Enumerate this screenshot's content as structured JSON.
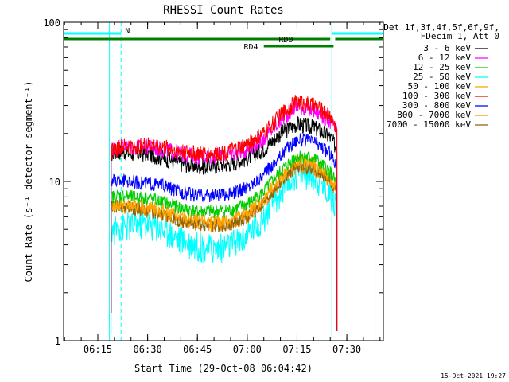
{
  "chart_data": {
    "type": "line",
    "title": "RHESSI Count Rates",
    "xlabel": "Start Time (29-Oct-08 06:04:42)",
    "ylabel": "Count Rate (s⁻¹ detector segment⁻¹)",
    "y_scale": "log",
    "ylim": [
      1,
      100
    ],
    "xlim": [
      "06:04:42",
      "07:41:00"
    ],
    "x_ticks": [
      "06:15",
      "06:30",
      "06:45",
      "07:00",
      "07:15",
      "07:30"
    ],
    "y_ticks": [
      "1",
      "10",
      "100"
    ],
    "grid": false,
    "legend_position": "right",
    "legend_header": [
      "Det 1f,3f,4f,5f,6f,9f,",
      "FDecim 1, Att 0"
    ],
    "series": [
      {
        "name": "3 - 6 keV",
        "color": "#000000",
        "x": [
          "06:19",
          "06:22",
          "06:25",
          "06:30",
          "06:35",
          "06:40",
          "06:45",
          "06:50",
          "06:55",
          "07:00",
          "07:05",
          "07:10",
          "07:15",
          "07:20",
          "07:25",
          "07:27"
        ],
        "values": [
          15,
          15.5,
          15,
          15,
          14,
          13,
          12.5,
          12.5,
          13,
          14,
          16,
          20,
          23,
          22,
          19,
          16
        ]
      },
      {
        "name": "6 - 12 keV",
        "color": "#ff00ff",
        "x": [
          "06:19",
          "06:22",
          "06:25",
          "06:30",
          "06:35",
          "06:40",
          "06:45",
          "06:50",
          "06:55",
          "07:00",
          "07:05",
          "07:10",
          "07:15",
          "07:20",
          "07:25",
          "07:27"
        ],
        "values": [
          16,
          17,
          16.5,
          16.5,
          16,
          15,
          14.5,
          14.5,
          15,
          16,
          18.5,
          24,
          30,
          28,
          24,
          20
        ]
      },
      {
        "name": "12 - 25 keV",
        "color": "#00cc00",
        "x": [
          "06:19",
          "06:22",
          "06:25",
          "06:30",
          "06:35",
          "06:40",
          "06:45",
          "06:50",
          "06:55",
          "07:00",
          "07:05",
          "07:10",
          "07:15",
          "07:20",
          "07:25",
          "07:27"
        ],
        "values": [
          8,
          8.2,
          8,
          7.9,
          7.4,
          6.8,
          6.5,
          6.5,
          6.6,
          7.2,
          8.6,
          11.5,
          14.5,
          14,
          11.5,
          9.5
        ]
      },
      {
        "name": "25 - 50 keV",
        "color": "#00ffff",
        "x": [
          "06:19",
          "06:22",
          "06:25",
          "06:30",
          "06:35",
          "06:40",
          "06:45",
          "06:50",
          "06:55",
          "07:00",
          "07:05",
          "07:10",
          "07:15",
          "07:20",
          "07:25",
          "07:27"
        ],
        "values": [
          5,
          5.2,
          5.3,
          5.5,
          5,
          4.3,
          4,
          3.8,
          4,
          4.6,
          6,
          8.5,
          11.5,
          11,
          8.5,
          7
        ]
      },
      {
        "name": "50 - 100 keV",
        "color": "#ffa500",
        "x": [
          "06:19",
          "06:22",
          "06:25",
          "06:30",
          "06:35",
          "06:40",
          "06:45",
          "06:50",
          "06:55",
          "07:00",
          "07:05",
          "07:10",
          "07:15",
          "07:20",
          "07:25",
          "07:27"
        ],
        "values": [
          7,
          7.2,
          7,
          7,
          6.6,
          6,
          5.7,
          5.6,
          5.8,
          6.4,
          7.8,
          10.5,
          13.5,
          13,
          10.5,
          8.8
        ]
      },
      {
        "name": "100 - 300 keV",
        "color": "#ff0000",
        "x": [
          "06:19",
          "06:22",
          "06:25",
          "06:30",
          "06:35",
          "06:40",
          "06:45",
          "06:50",
          "06:55",
          "07:00",
          "07:05",
          "07:10",
          "07:15",
          "07:20",
          "07:25",
          "07:27"
        ],
        "values": [
          15.5,
          16.5,
          16.5,
          17,
          16.5,
          15.5,
          15,
          15,
          15.5,
          17,
          20,
          26,
          32,
          30,
          26,
          21
        ]
      },
      {
        "name": "300 - 800 keV",
        "color": "#0000ff",
        "x": [
          "06:19",
          "06:22",
          "06:25",
          "06:30",
          "06:35",
          "06:40",
          "06:45",
          "06:50",
          "06:55",
          "07:00",
          "07:05",
          "07:10",
          "07:15",
          "07:20",
          "07:25",
          "07:27"
        ],
        "values": [
          10,
          10.2,
          10,
          9.8,
          9.4,
          8.6,
          8.2,
          8.2,
          8.4,
          9.2,
          11,
          14.5,
          18.5,
          18,
          15,
          12.5
        ]
      },
      {
        "name": "800 - 7000 keV",
        "color": "#ff8c00",
        "x": [
          "06:19",
          "06:22",
          "06:25",
          "06:30",
          "06:35",
          "06:40",
          "06:45",
          "06:50",
          "06:55",
          "07:00",
          "07:05",
          "07:10",
          "07:15",
          "07:20",
          "07:25",
          "07:27"
        ],
        "values": [
          7,
          7,
          6.8,
          6.6,
          6.2,
          5.6,
          5.4,
          5.3,
          5.4,
          6,
          7.3,
          9.8,
          12.5,
          12,
          10,
          8.5
        ]
      },
      {
        "name": "7000 - 15000 keV",
        "color": "#8b6508",
        "x": [
          "06:19",
          "06:22",
          "06:25",
          "06:30",
          "06:35",
          "06:40",
          "06:45",
          "06:50",
          "06:55",
          "07:00",
          "07:05",
          "07:10",
          "07:15",
          "07:20",
          "07:25",
          "07:27"
        ],
        "values": [
          7,
          7,
          6.8,
          6.6,
          6.2,
          5.6,
          5.4,
          5.3,
          5.4,
          6,
          7.3,
          9.8,
          12.5,
          12,
          10,
          8.5
        ]
      }
    ],
    "attenuator_bars": [
      {
        "label": "N",
        "color": "#00ffff",
        "level": 1,
        "segments": [
          [
            "06:04:42",
            "06:22:00"
          ],
          [
            "07:25:30",
            "07:41:00"
          ]
        ]
      },
      {
        "label": "RD0",
        "color": "#008000",
        "level": 2,
        "segments": [
          [
            "06:04:42",
            "07:25:00"
          ],
          [
            "07:26:30",
            "07:41:00"
          ]
        ]
      },
      {
        "label": "RD4",
        "color": "#008000",
        "level": 3,
        "segments": [
          [
            "07:05:00",
            "07:26:00"
          ]
        ]
      }
    ],
    "vertical_markers": [
      {
        "time": "06:18:30",
        "color": "#00ffff",
        "style": "solid"
      },
      {
        "time": "06:22:00",
        "color": "#00ffff",
        "style": "dashed"
      },
      {
        "time": "07:25:30",
        "color": "#00ffff",
        "style": "solid"
      },
      {
        "time": "07:38:30",
        "color": "#00ffff",
        "style": "dashed"
      }
    ]
  },
  "footer": {
    "timestamp": "15-Oct-2021 19:27"
  }
}
